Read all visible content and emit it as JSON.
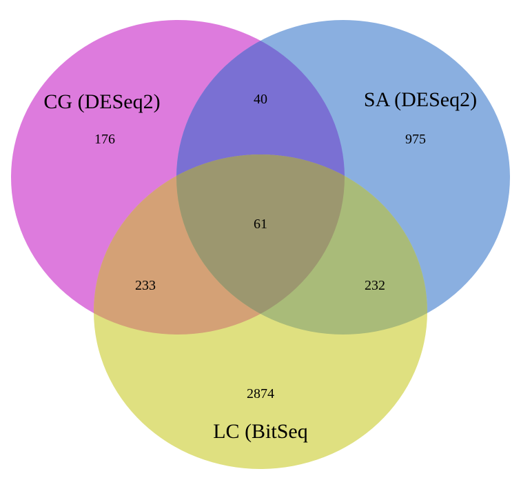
{
  "sets": {
    "cg": {
      "label": "CG (DESeq2)",
      "color": "#dd7bdd"
    },
    "sa": {
      "label": "SA (DESeq2)",
      "color": "#8aafe0"
    },
    "lc": {
      "label": "LC (BitSeq",
      "color": "#dfe080"
    }
  },
  "regions": {
    "cg_only": "176",
    "sa_only": "975",
    "lc_only": "2874",
    "cg_sa": "40",
    "cg_lc": "233",
    "sa_lc": "232",
    "all_three": "61"
  },
  "overlap_colors": {
    "cg_sa": "#7a70d3",
    "cg_lc": "#d4a176",
    "sa_lc": "#a9bb79",
    "all_three": "#9c976f"
  }
}
